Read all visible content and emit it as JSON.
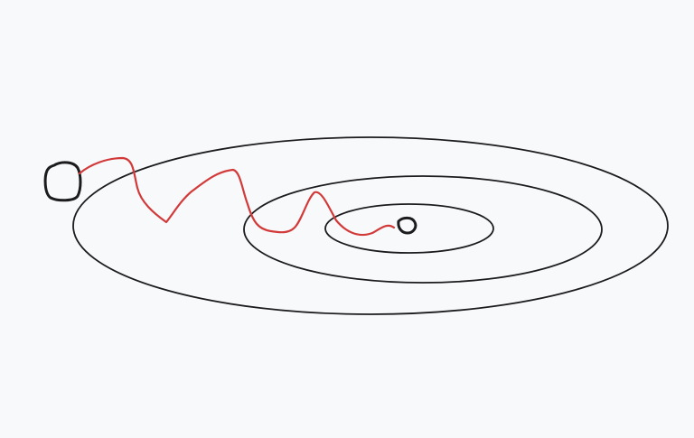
{
  "canvas": {
    "background_color": "#f8f9fb"
  },
  "drawing": {
    "stroke_color": "#1c1c1e",
    "path_color": "#d23a3a",
    "elements": [
      {
        "type": "ellipse",
        "name": "contour-outer"
      },
      {
        "type": "ellipse",
        "name": "contour-middle"
      },
      {
        "type": "ellipse",
        "name": "contour-inner"
      },
      {
        "type": "blob",
        "name": "start-point"
      },
      {
        "type": "blob",
        "name": "end-point"
      },
      {
        "type": "squiggle",
        "name": "descent-path"
      }
    ]
  }
}
